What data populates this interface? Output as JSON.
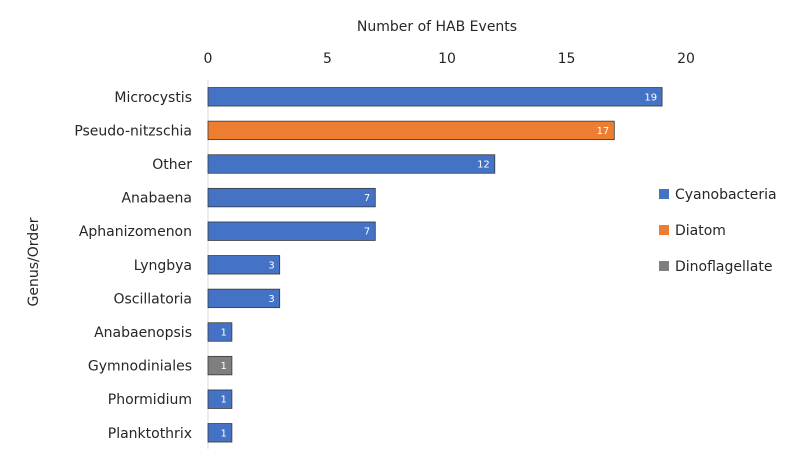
{
  "chart_data": {
    "type": "bar",
    "orientation": "horizontal",
    "xlabel": "Number of HAB Events",
    "ylabel": "Genus/Order",
    "xlim": [
      0,
      20
    ],
    "x_ticks": [
      "0",
      "5",
      "10",
      "15",
      "20"
    ],
    "x_axis_position": "top",
    "grid": false,
    "legend_position": "right",
    "colors": {
      "Cyanobacteria": "#4472C4",
      "Diatom": "#ED7D31",
      "Dinoflagellate": "#7F7F7F"
    },
    "legend": [
      "Cyanobacteria",
      "Diatom",
      "Dinoflagellate"
    ],
    "bars": [
      {
        "category": "Microcystis",
        "value": 19,
        "group": "Cyanobacteria"
      },
      {
        "category": "Pseudo-nitzschia",
        "value": 17,
        "group": "Diatom"
      },
      {
        "category": "Other",
        "value": 12,
        "group": "Cyanobacteria"
      },
      {
        "category": "Anabaena",
        "value": 7,
        "group": "Cyanobacteria"
      },
      {
        "category": "Aphanizomenon",
        "value": 7,
        "group": "Cyanobacteria"
      },
      {
        "category": "Lyngbya",
        "value": 3,
        "group": "Cyanobacteria"
      },
      {
        "category": "Oscillatoria",
        "value": 3,
        "group": "Cyanobacteria"
      },
      {
        "category": "Anabaenopsis",
        "value": 1,
        "group": "Cyanobacteria"
      },
      {
        "category": "Gymnodiniales",
        "value": 1,
        "group": "Dinoflagellate"
      },
      {
        "category": "Phormidium",
        "value": 1,
        "group": "Cyanobacteria"
      },
      {
        "category": "Planktothrix",
        "value": 1,
        "group": "Cyanobacteria"
      }
    ]
  }
}
